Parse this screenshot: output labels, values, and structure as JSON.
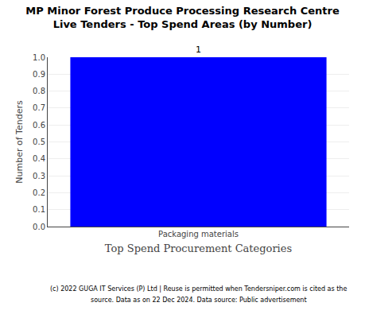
{
  "chart_data": {
    "type": "bar",
    "title": "MP Minor Forest Produce Processing Research Centre",
    "subtitle": "Live Tenders - Top Spend Areas (by Number)",
    "xlabel": "Top Spend Procurement Categories",
    "ylabel": "Number of Tenders",
    "categories": [
      "Packaging materials"
    ],
    "values": [
      1
    ],
    "color": "#0000ff",
    "ylim": [
      0,
      1.0
    ],
    "yticks": [
      {
        "value": 0,
        "label": "0.0"
      },
      0.1,
      0.2,
      0.3,
      0.4,
      0.5,
      0.6,
      0.7,
      0.8,
      0.9,
      {
        "value": 1,
        "label": "1.0"
      }
    ],
    "grid": true,
    "data_labels": true,
    "annotations": [
      "(c) 2022 GUGA IT Services (P) Ltd | Reuse is permitted when Tendersniper.com is cited as the",
      "source. Data as on 22 Dec 2024. Data source: Public advertisement"
    ]
  }
}
